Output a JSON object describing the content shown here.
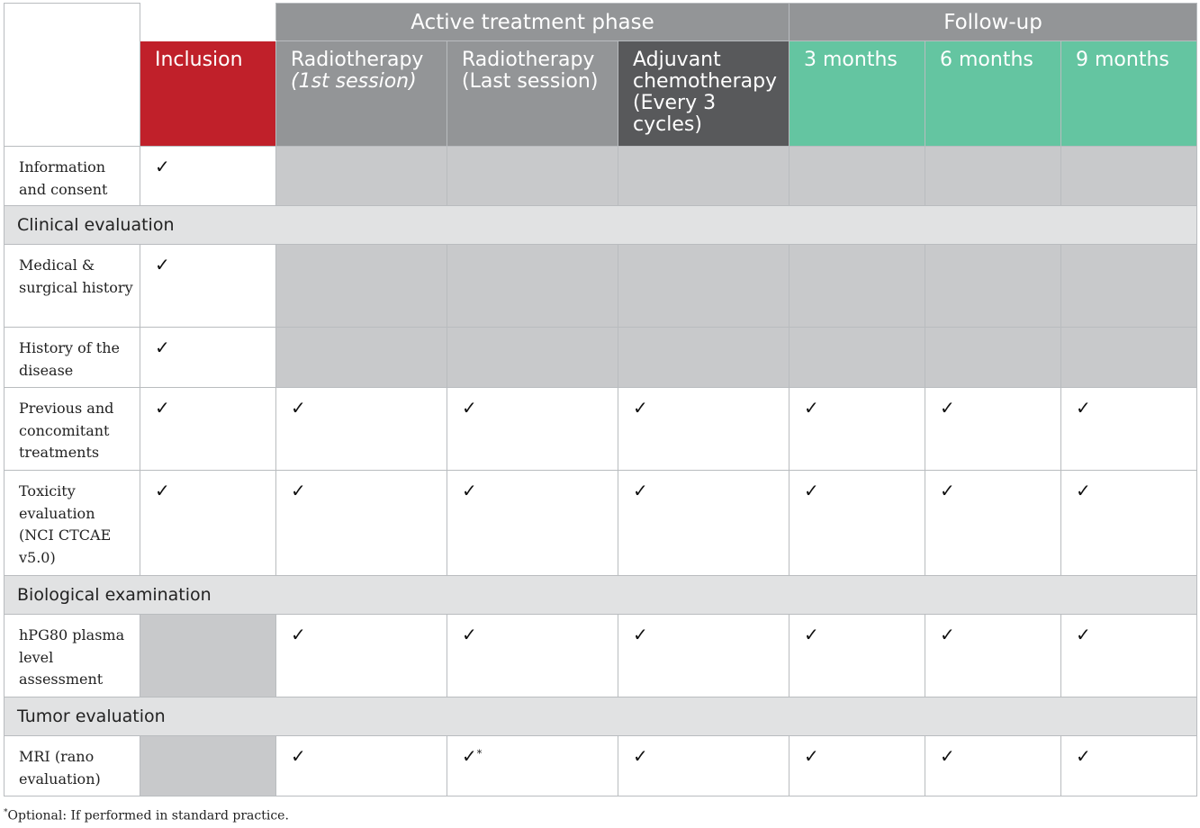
{
  "header": {
    "group_active": "Active treatment phase",
    "group_followup": "Follow-up",
    "columns": [
      {
        "line1": "Inclusion",
        "line2": "",
        "line2_italic": false
      },
      {
        "line1": "Radiotherapy",
        "line2": "(1st session)",
        "line2_italic": true
      },
      {
        "line1": "Radiotherapy",
        "line2": "(Last session)",
        "line2_italic": false
      },
      {
        "line1": "Adjuvant chemotherapy (Every 3 cycles)",
        "line2": "",
        "line2_italic": false
      },
      {
        "line1": "3 months",
        "line2": "",
        "line2_italic": false
      },
      {
        "line1": "6 months",
        "line2": "",
        "line2_italic": false
      },
      {
        "line1": "9 months",
        "line2": "",
        "line2_italic": false
      }
    ]
  },
  "colors": {
    "group_header": "#939597",
    "inclusion": "#c0202a",
    "radiotherapy": "#939597",
    "adjuvant": "#58595b",
    "followup": "#64c5a1",
    "section": "#e1e2e3",
    "na_cell": "#c8c9cb"
  },
  "check": "✓",
  "rows": [
    {
      "type": "item",
      "label": "Information and consent",
      "height": 66,
      "cells": [
        "check",
        "na",
        "na",
        "na",
        "na",
        "na",
        "na"
      ]
    },
    {
      "type": "section",
      "label": "Clinical evaluation",
      "height": 43
    },
    {
      "type": "item",
      "label": "Medical & surgical history",
      "height": 92,
      "cells": [
        "check",
        "na",
        "na",
        "na",
        "na",
        "na",
        "na"
      ]
    },
    {
      "type": "item",
      "label": "History of the disease",
      "height": 67,
      "cells": [
        "check",
        "na",
        "na",
        "na",
        "na",
        "na",
        "na"
      ]
    },
    {
      "type": "item",
      "label": "Previous and concomitant treatments",
      "height": 92,
      "cells": [
        "check",
        "check",
        "check",
        "check",
        "check",
        "check",
        "check"
      ]
    },
    {
      "type": "item",
      "label": "Toxicity evaluation (NCI CTCAE v5.0)",
      "height": 117,
      "cells": [
        "check",
        "check",
        "check",
        "check",
        "check",
        "check",
        "check"
      ]
    },
    {
      "type": "section",
      "label": "Biological examination",
      "height": 43
    },
    {
      "type": "item",
      "label": "hPG80 plasma level assessment",
      "height": 92,
      "cells": [
        "na",
        "check",
        "check",
        "check",
        "check",
        "check",
        "check"
      ]
    },
    {
      "type": "section",
      "label": "Tumor evaluation",
      "height": 43
    },
    {
      "type": "item",
      "label": "MRI (rano evaluation)",
      "height": 67,
      "cells": [
        "na",
        "check",
        "check_star",
        "check",
        "check",
        "check",
        "check"
      ]
    }
  ],
  "footnote": {
    "marker": "*",
    "text": "Optional: If performed in standard practice."
  }
}
